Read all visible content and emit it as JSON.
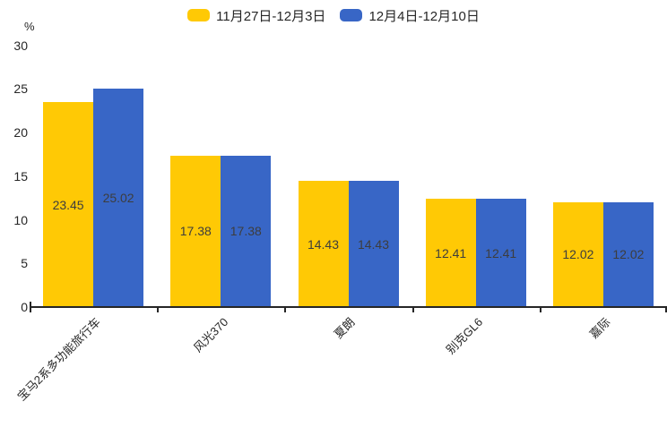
{
  "chart_data": {
    "type": "bar",
    "title": "",
    "xlabel": "",
    "ylabel": "%",
    "categories": [
      "宝马2系多功能旅行车",
      "风光370",
      "夏朗",
      "别克GL6",
      "嘉际"
    ],
    "series": [
      {
        "name": "11月27日-12月3日",
        "color": "#FFC905",
        "values": [
          23.45,
          17.38,
          14.43,
          12.41,
          12.02
        ]
      },
      {
        "name": "12月4日-12月10日",
        "color": "#3866C6",
        "values": [
          25.02,
          17.38,
          14.43,
          12.41,
          12.02
        ]
      }
    ],
    "ylim": [
      0,
      30
    ],
    "yticks": [
      0,
      5,
      10,
      15,
      20,
      25,
      30
    ],
    "legend_position": "top-center",
    "grid": false,
    "value_labels": "inside-center",
    "x_label_rotation_deg": 45,
    "axis_color": "#262626",
    "label_color": "#3d3d3d"
  }
}
